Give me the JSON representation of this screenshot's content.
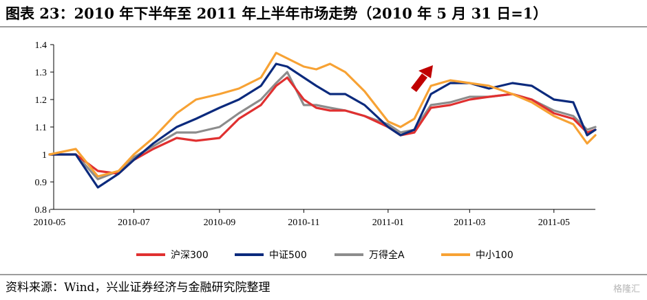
{
  "header": {
    "title": "图表 23：2010 年下半年至 2011 年上半年市场走势（2010 年 5 月 31 日=1）"
  },
  "footer": {
    "source": "资料来源：Wind，兴业证券经济与金融研究院整理",
    "watermark": "格隆汇"
  },
  "chart_data": {
    "type": "line",
    "title": "2010 年下半年至 2011 年上半年市场走势（2010 年 5 月 31 日=1）",
    "xlabel": "",
    "ylabel": "",
    "ylim": [
      0.8,
      1.4
    ],
    "yticks": [
      "0.8",
      "0.9",
      "1",
      "1.1",
      "1.2",
      "1.3",
      "1.4"
    ],
    "xlim": [
      "2010-05-01",
      "2011-05-31"
    ],
    "xticks": [
      "2010-05",
      "2010-07",
      "2010-09",
      "2010-11",
      "2011-01",
      "2011-03",
      "2011-05"
    ],
    "grid": false,
    "legend_position": "bottom",
    "x": [
      "2010-05-01",
      "2010-05-20",
      "2010-06-05",
      "2010-06-20",
      "2010-07-01",
      "2010-07-15",
      "2010-08-01",
      "2010-08-15",
      "2010-09-01",
      "2010-09-15",
      "2010-10-01",
      "2010-10-12",
      "2010-10-20",
      "2010-11-01",
      "2010-11-10",
      "2010-11-20",
      "2010-12-01",
      "2010-12-15",
      "2011-01-01",
      "2011-01-10",
      "2011-01-20",
      "2011-02-01",
      "2011-02-15",
      "2011-03-01",
      "2011-03-15",
      "2011-04-01",
      "2011-04-15",
      "2011-05-01",
      "2011-05-15",
      "2011-05-25",
      "2011-05-31"
    ],
    "series": [
      {
        "name": "沪深300",
        "color": "#e03030",
        "values": [
          1.0,
          1.0,
          0.94,
          0.93,
          0.98,
          1.02,
          1.06,
          1.05,
          1.06,
          1.13,
          1.18,
          1.25,
          1.28,
          1.2,
          1.17,
          1.16,
          1.16,
          1.14,
          1.1,
          1.07,
          1.08,
          1.17,
          1.18,
          1.2,
          1.21,
          1.22,
          1.2,
          1.15,
          1.13,
          1.08,
          1.09
        ]
      },
      {
        "name": "中证500",
        "color": "#0b2a7d",
        "values": [
          1.0,
          1.0,
          0.88,
          0.93,
          0.98,
          1.04,
          1.1,
          1.13,
          1.17,
          1.2,
          1.25,
          1.33,
          1.32,
          1.28,
          1.25,
          1.22,
          1.22,
          1.18,
          1.1,
          1.07,
          1.09,
          1.22,
          1.26,
          1.26,
          1.24,
          1.26,
          1.25,
          1.2,
          1.19,
          1.07,
          1.09
        ]
      },
      {
        "name": "万得全A",
        "color": "#8c8c8c",
        "values": [
          1.0,
          1.0,
          0.91,
          0.94,
          0.99,
          1.03,
          1.08,
          1.08,
          1.1,
          1.15,
          1.2,
          1.26,
          1.3,
          1.18,
          1.18,
          1.17,
          1.16,
          1.14,
          1.11,
          1.08,
          1.09,
          1.18,
          1.19,
          1.21,
          1.21,
          1.22,
          1.2,
          1.16,
          1.14,
          1.09,
          1.1
        ]
      },
      {
        "name": "中小100",
        "color": "#f7a234",
        "values": [
          1.0,
          1.02,
          0.92,
          0.94,
          1.0,
          1.06,
          1.15,
          1.2,
          1.22,
          1.24,
          1.28,
          1.37,
          1.35,
          1.32,
          1.31,
          1.33,
          1.3,
          1.23,
          1.12,
          1.1,
          1.13,
          1.25,
          1.27,
          1.26,
          1.25,
          1.22,
          1.19,
          1.14,
          1.11,
          1.04,
          1.07
        ]
      }
    ]
  }
}
